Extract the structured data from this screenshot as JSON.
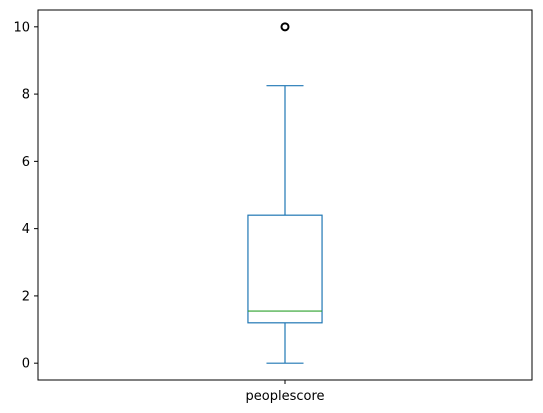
{
  "chart_data": {
    "type": "boxplot",
    "categories": [
      "peoplescore"
    ],
    "boxes": [
      {
        "label": "peoplescore",
        "whisker_low": 0.0,
        "q1": 1.2,
        "median": 1.55,
        "q3": 4.4,
        "whisker_high": 8.25,
        "outliers": [
          10.0
        ]
      }
    ],
    "yticks": [
      0,
      2,
      4,
      6,
      8,
      10
    ],
    "ytick_labels": [
      "0",
      "2",
      "4",
      "6",
      "8",
      "10"
    ],
    "ylim": [
      -0.5,
      10.5
    ],
    "grid": false,
    "legend": "none",
    "colors": {
      "box": "#1f77b4",
      "median": "#2ca02c",
      "outlier": "#000000",
      "axes": "#000000"
    }
  }
}
